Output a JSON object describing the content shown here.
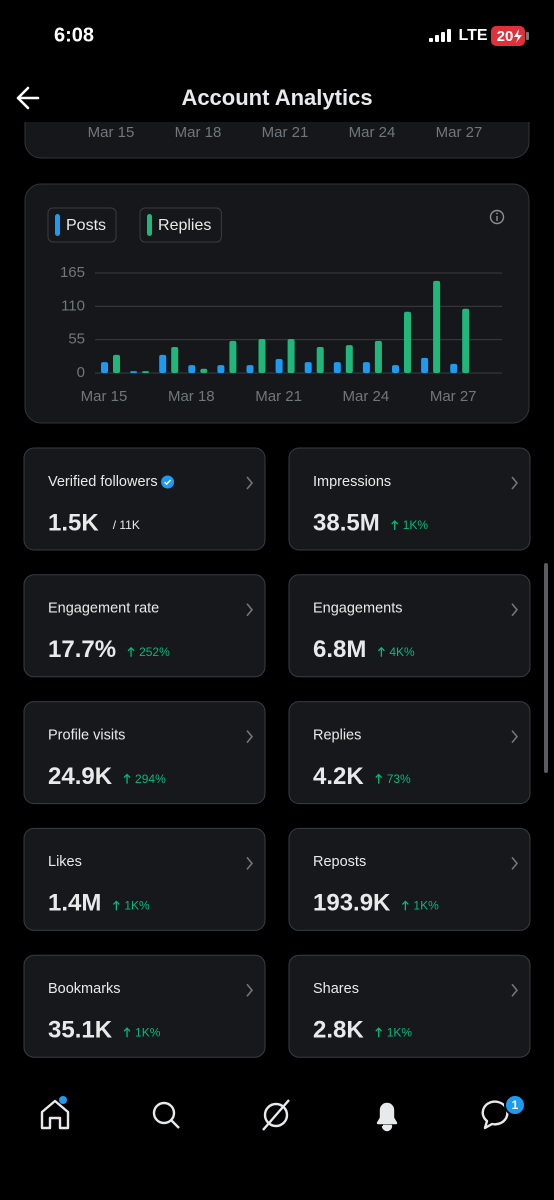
{
  "status_bar": {
    "time": "6:08",
    "network": "LTE",
    "battery": "20"
  },
  "header": {
    "title": "Account Analytics"
  },
  "top_card_labels": [
    "Mar 15",
    "Mar 18",
    "Mar 21",
    "Mar 24",
    "Mar 27"
  ],
  "chart_data": {
    "type": "bar",
    "categories": [
      "Mar 15",
      null,
      null,
      "Mar 18",
      null,
      null,
      "Mar 21",
      null,
      null,
      "Mar 24",
      null,
      null,
      "Mar 27"
    ],
    "series": [
      {
        "name": "Posts",
        "color": "#1d9bf0",
        "values": [
          18,
          3,
          30,
          13,
          13,
          13,
          23,
          18,
          18,
          18,
          13,
          25,
          15
        ]
      },
      {
        "name": "Replies",
        "color": "#1fb87a",
        "values": [
          30,
          3,
          43,
          7,
          53,
          56,
          56,
          43,
          46,
          53,
          101,
          152,
          106
        ]
      }
    ],
    "ylim": [
      0,
      165
    ],
    "yticks": [
      0,
      55,
      110,
      165
    ],
    "grid": true
  },
  "metrics": [
    {
      "label": "Verified followers",
      "value": "1.5K",
      "total": "/ 11K"
    },
    {
      "label": "Impressions",
      "value": "38.5M",
      "change": "1K%"
    },
    {
      "label": "Engagement rate",
      "value": "17.7%",
      "change": "252%"
    },
    {
      "label": "Engagements",
      "value": "6.8M",
      "change": "4K%"
    },
    {
      "label": "Profile visits",
      "value": "24.9K",
      "change": "294%"
    },
    {
      "label": "Replies",
      "value": "4.2K",
      "change": "73%"
    },
    {
      "label": "Likes",
      "value": "1.4M",
      "change": "1K%"
    },
    {
      "label": "Reposts",
      "value": "193.9K",
      "change": "1K%"
    },
    {
      "label": "Bookmarks",
      "value": "35.1K",
      "change": "1K%"
    },
    {
      "label": "Shares",
      "value": "2.8K",
      "change": "1K%"
    }
  ],
  "nav": {
    "messages_badge": "1"
  }
}
